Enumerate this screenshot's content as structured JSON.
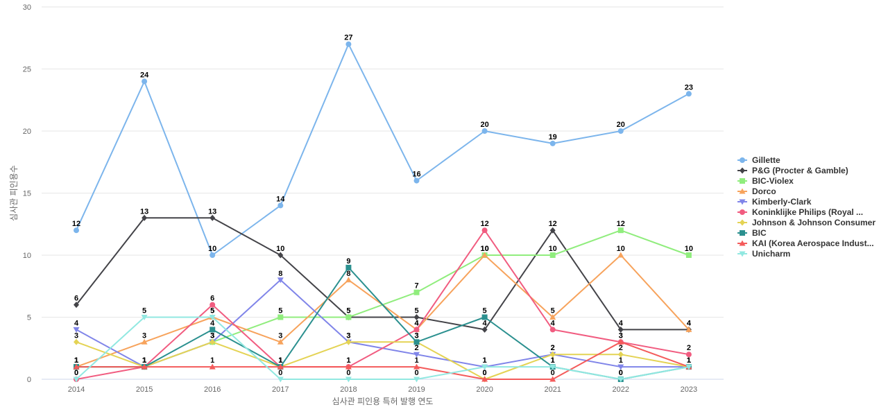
{
  "chart_data": {
    "type": "line",
    "title": "",
    "xlabel": "심사관 피인용 특허 발행 연도",
    "ylabel": "심사관 피인용수",
    "x": [
      "2014",
      "2015",
      "2016",
      "2017",
      "2018",
      "2019",
      "2020",
      "2021",
      "2022",
      "2023"
    ],
    "ylim": [
      0,
      30
    ],
    "yticks": [
      "0",
      "5",
      "10",
      "15",
      "20",
      "25",
      "30"
    ],
    "grid": true,
    "legend_position": "right",
    "series": [
      {
        "name": "Gillette",
        "color": "#7cb5ec",
        "marker": "circle",
        "values": [
          12,
          24,
          10,
          14,
          27,
          16,
          20,
          19,
          20,
          23
        ]
      },
      {
        "name": "P&G (Procter & Gamble)",
        "color": "#434348",
        "marker": "diamond",
        "values": [
          6,
          13,
          13,
          10,
          5,
          5,
          4,
          12,
          4,
          4
        ]
      },
      {
        "name": "BIC-Violex",
        "color": "#90ed7d",
        "marker": "square",
        "values": [
          1,
          1,
          3,
          5,
          5,
          7,
          10,
          10,
          12,
          10
        ]
      },
      {
        "name": "Dorco",
        "color": "#f7a35c",
        "marker": "triangle",
        "values": [
          1,
          3,
          5,
          3,
          8,
          4,
          10,
          5,
          10,
          4
        ]
      },
      {
        "name": "Kimberly-Clark",
        "color": "#8085e9",
        "marker": "triangle-down",
        "values": [
          4,
          1,
          3,
          8,
          3,
          2,
          1,
          2,
          1,
          1
        ]
      },
      {
        "name": "Koninklijke Philips (Royal ...",
        "color": "#f15c80",
        "marker": "circle",
        "values": [
          0,
          1,
          6,
          1,
          1,
          4,
          12,
          4,
          3,
          2
        ]
      },
      {
        "name": "Johnson & Johnson Consumer",
        "color": "#e4d354",
        "marker": "diamond",
        "values": [
          3,
          1,
          3,
          1,
          3,
          3,
          0,
          2,
          2,
          1
        ]
      },
      {
        "name": "BIC",
        "color": "#2b908f",
        "marker": "square",
        "values": [
          1,
          1,
          4,
          1,
          9,
          3,
          5,
          1,
          0,
          1
        ]
      },
      {
        "name": "KAI (Korea Aerospace Indust...",
        "color": "#f45b5b",
        "marker": "triangle",
        "values": [
          1,
          1,
          1,
          1,
          1,
          1,
          0,
          0,
          3,
          1
        ]
      },
      {
        "name": "Unicharm",
        "color": "#91e8e1",
        "marker": "triangle-down",
        "values": [
          0,
          5,
          5,
          0,
          0,
          0,
          1,
          1,
          0,
          1
        ]
      }
    ]
  }
}
